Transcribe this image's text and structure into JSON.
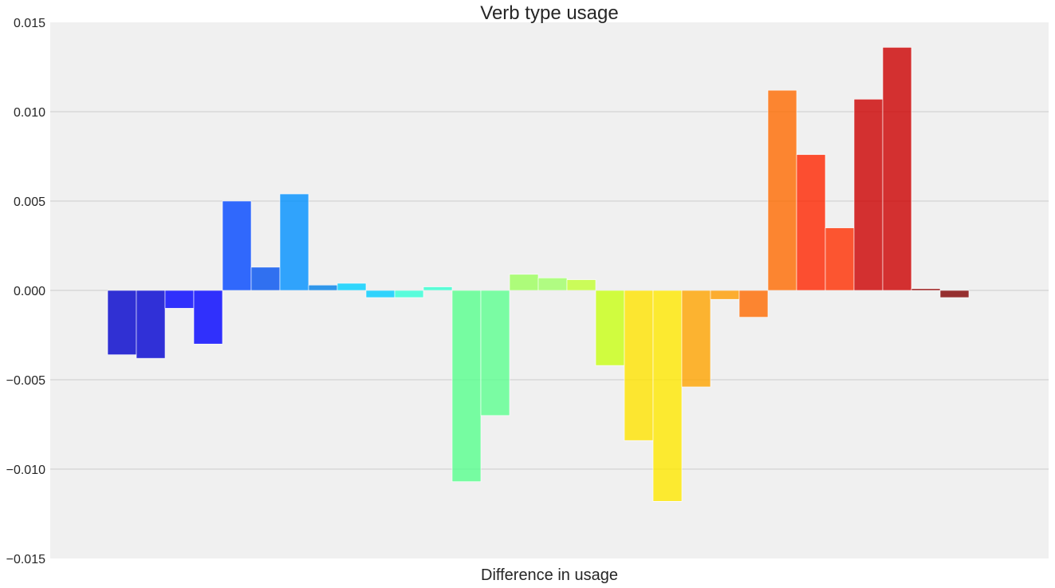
{
  "chart_data": {
    "type": "bar",
    "title": "Verb type usage",
    "xlabel": "Difference in usage",
    "ylabel": "",
    "ylim": [
      -0.015,
      0.015
    ],
    "yticks": [
      0.015,
      0.01,
      0.005,
      0.0,
      -0.005,
      -0.01,
      -0.015
    ],
    "ytick_labels": [
      "0.015",
      "0.010",
      "0.005",
      "0.000",
      "−0.005",
      "−0.010",
      "−0.015"
    ],
    "grid": true,
    "background": "#f0f0f0",
    "values": [
      -0.0036,
      -0.0038,
      -0.001,
      -0.003,
      0.005,
      0.0013,
      0.0054,
      0.0003,
      0.0004,
      -0.0004,
      -0.0004,
      0.0002,
      -0.0107,
      -0.007,
      0.0009,
      0.0007,
      0.0006,
      -0.0042,
      -0.0084,
      -0.0118,
      -0.0054,
      -0.0005,
      -0.0015,
      0.0112,
      0.0076,
      0.0035,
      0.0107,
      0.0136,
      0.0001,
      -0.0004
    ],
    "colors": [
      "#0000cc",
      "#0000d1",
      "#0000ff",
      "#0000ff",
      "#0046ff",
      "#0050f0",
      "#0090ff",
      "#0080e8",
      "#00d0ff",
      "#00ccff",
      "#33ffd6",
      "#33ffd0",
      "#58ff8d",
      "#5cff90",
      "#9cff5c",
      "#a0ff66",
      "#c2ff33",
      "#c8ff13",
      "#ffe400",
      "#ffe800",
      "#ffa400",
      "#ff9c00",
      "#ff6a00",
      "#ff6a00",
      "#ff2600",
      "#ff2e00",
      "#cc0000",
      "#cc0000",
      "#900000",
      "#800000"
    ]
  }
}
